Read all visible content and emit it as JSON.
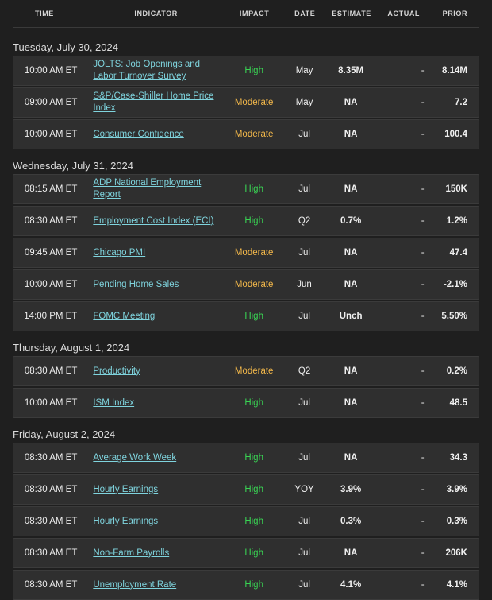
{
  "header": {
    "time": "TIME",
    "indicator": "INDICATOR",
    "impact": "IMPACT",
    "date": "DATE",
    "estimate": "ESTIMATE",
    "actual": "ACTUAL",
    "prior": "PRIOR"
  },
  "colors": {
    "high": "#39d353",
    "moderate": "#f3b84a",
    "link": "#7fd4de"
  },
  "groups": [
    {
      "date": "Tuesday, July 30, 2024",
      "rows": [
        {
          "time": "10:00 AM ET",
          "indicator": "JOLTS: Job Openings and Labor Turnover Survey",
          "impact": "High",
          "date": "May",
          "estimate": "8.35M",
          "actual": "-",
          "prior": "8.14M"
        },
        {
          "time": "09:00 AM ET",
          "indicator": "S&P/Case-Shiller Home Price Index",
          "impact": "Moderate",
          "date": "May",
          "estimate": "NA",
          "actual": "-",
          "prior": "7.2"
        },
        {
          "time": "10:00 AM ET",
          "indicator": "Consumer Confidence",
          "impact": "Moderate",
          "date": "Jul",
          "estimate": "NA",
          "actual": "-",
          "prior": "100.4"
        }
      ]
    },
    {
      "date": "Wednesday, July 31, 2024",
      "rows": [
        {
          "time": "08:15 AM ET",
          "indicator": "ADP National Employment Report",
          "impact": "High",
          "date": "Jul",
          "estimate": "NA",
          "actual": "-",
          "prior": "150K"
        },
        {
          "time": "08:30 AM ET",
          "indicator": "Employment Cost Index (ECI)",
          "impact": "High",
          "date": "Q2",
          "estimate": "0.7%",
          "actual": "-",
          "prior": "1.2%"
        },
        {
          "time": "09:45 AM ET",
          "indicator": "Chicago PMI",
          "impact": "Moderate",
          "date": "Jul",
          "estimate": "NA",
          "actual": "-",
          "prior": "47.4"
        },
        {
          "time": "10:00 AM ET",
          "indicator": "Pending Home Sales",
          "impact": "Moderate",
          "date": "Jun",
          "estimate": "NA",
          "actual": "-",
          "prior": "-2.1%"
        },
        {
          "time": "14:00 PM ET",
          "indicator": "FOMC Meeting",
          "impact": "High",
          "date": "Jul",
          "estimate": "Unch",
          "actual": "-",
          "prior": "5.50%"
        }
      ]
    },
    {
      "date": "Thursday, August 1, 2024",
      "rows": [
        {
          "time": "08:30 AM ET",
          "indicator": "Productivity",
          "impact": "Moderate",
          "date": "Q2",
          "estimate": "NA",
          "actual": "-",
          "prior": "0.2%"
        },
        {
          "time": "10:00 AM ET",
          "indicator": "ISM Index",
          "impact": "High",
          "date": "Jul",
          "estimate": "NA",
          "actual": "-",
          "prior": "48.5"
        }
      ]
    },
    {
      "date": "Friday, August 2, 2024",
      "rows": [
        {
          "time": "08:30 AM ET",
          "indicator": "Average Work Week",
          "impact": "High",
          "date": "Jul",
          "estimate": "NA",
          "actual": "-",
          "prior": "34.3"
        },
        {
          "time": "08:30 AM ET",
          "indicator": "Hourly Earnings",
          "impact": "High",
          "date": "YOY",
          "estimate": "3.9%",
          "actual": "-",
          "prior": "3.9%"
        },
        {
          "time": "08:30 AM ET",
          "indicator": "Hourly Earnings",
          "impact": "High",
          "date": "Jul",
          "estimate": "0.3%",
          "actual": "-",
          "prior": "0.3%"
        },
        {
          "time": "08:30 AM ET",
          "indicator": "Non-Farm Payrolls",
          "impact": "High",
          "date": "Jul",
          "estimate": "NA",
          "actual": "-",
          "prior": "206K"
        },
        {
          "time": "08:30 AM ET",
          "indicator": "Unemployment Rate",
          "impact": "High",
          "date": "Jul",
          "estimate": "4.1%",
          "actual": "-",
          "prior": "4.1%"
        }
      ]
    }
  ]
}
